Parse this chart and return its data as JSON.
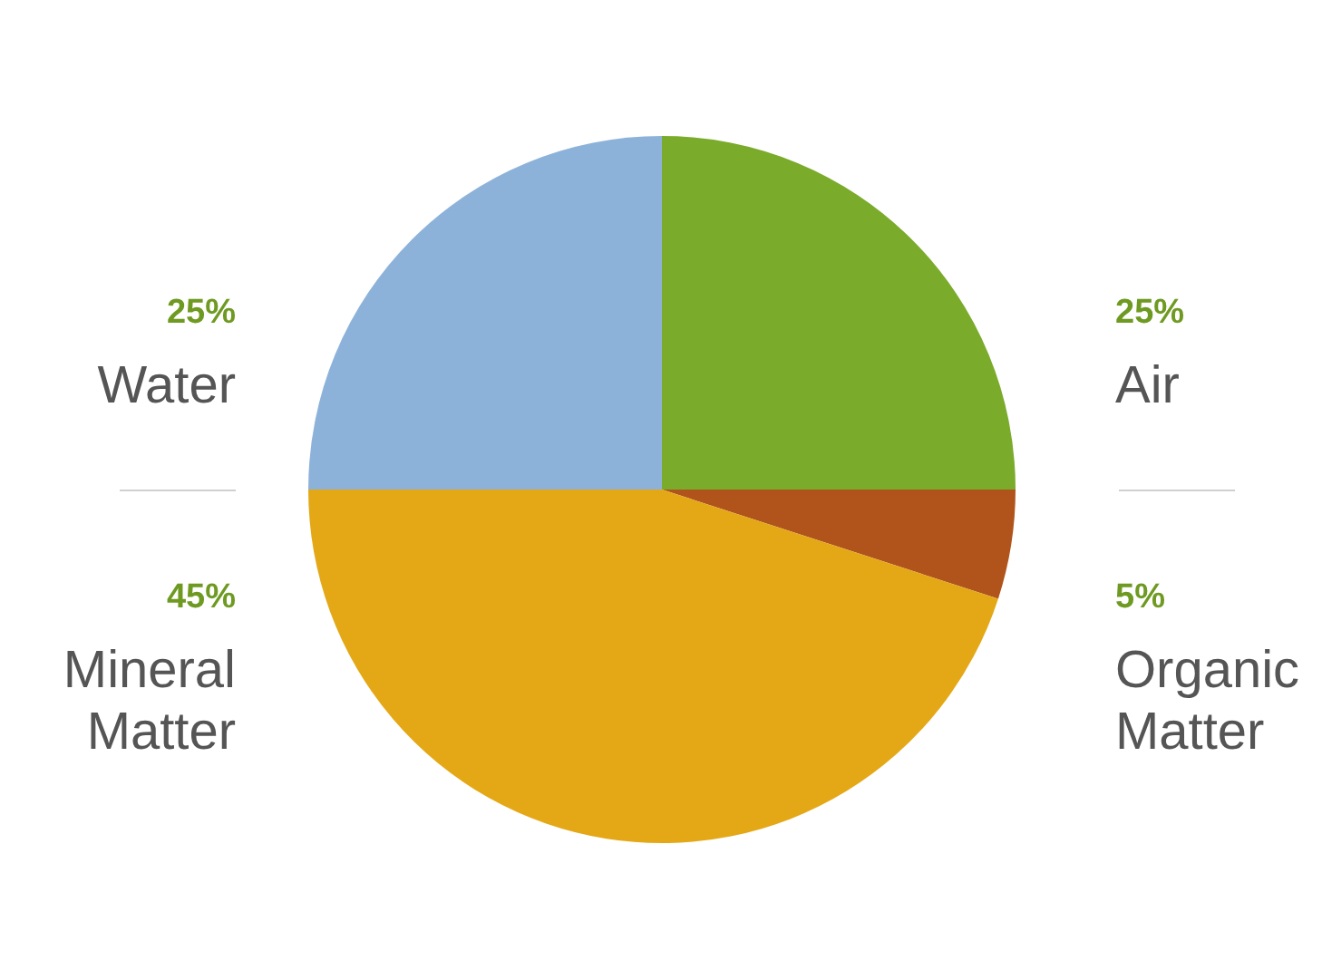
{
  "chart_data": {
    "type": "pie",
    "categories": [
      "Air",
      "Organic Matter",
      "Mineral Matter",
      "Water"
    ],
    "values": [
      25,
      5,
      45,
      25
    ],
    "colors": [
      "#7aab2b",
      "#b0541c",
      "#e4a817",
      "#8db2da"
    ],
    "value_labels": [
      "25%",
      "5%",
      "45%",
      "25%"
    ],
    "legend": false
  }
}
